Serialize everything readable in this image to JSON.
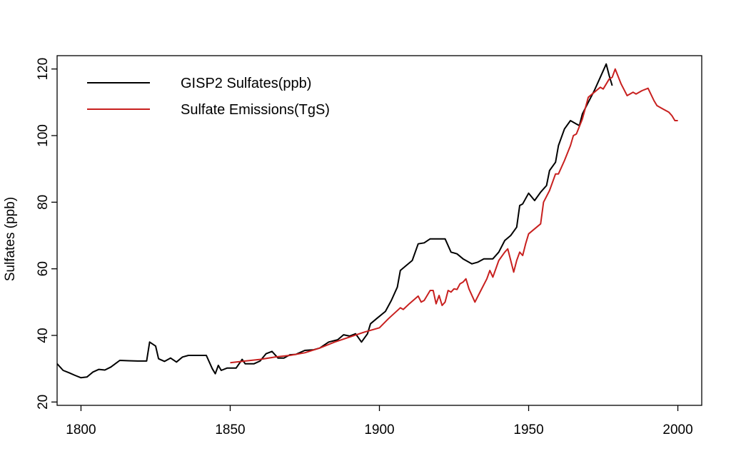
{
  "chart_data": {
    "type": "line",
    "title": "",
    "xlabel": "",
    "ylabel": "Sulfates (ppb)",
    "xlim": [
      1792,
      2008
    ],
    "ylim": [
      19,
      124
    ],
    "x_ticks": [
      1800,
      1850,
      1900,
      1950,
      2000
    ],
    "y_ticks": [
      20,
      40,
      60,
      80,
      100,
      120
    ],
    "grid": false,
    "legend_position": "top-left",
    "series": [
      {
        "name": "GISP2 Sulfates(ppb)",
        "color": "#000000",
        "points": [
          [
            1792,
            31.5
          ],
          [
            1794,
            29.5
          ],
          [
            1796,
            28.8
          ],
          [
            1798,
            28.0
          ],
          [
            1800,
            27.3
          ],
          [
            1802,
            27.5
          ],
          [
            1804,
            29.0
          ],
          [
            1806,
            29.8
          ],
          [
            1808,
            29.6
          ],
          [
            1810,
            30.5
          ],
          [
            1813,
            32.5
          ],
          [
            1816,
            32.4
          ],
          [
            1819,
            32.3
          ],
          [
            1822,
            32.3
          ],
          [
            1823,
            38.0
          ],
          [
            1825,
            36.8
          ],
          [
            1826,
            33.0
          ],
          [
            1828,
            32.2
          ],
          [
            1830,
            33.2
          ],
          [
            1832,
            32.0
          ],
          [
            1834,
            33.5
          ],
          [
            1836,
            34.0
          ],
          [
            1838,
            34.0
          ],
          [
            1840,
            34.0
          ],
          [
            1842,
            34.0
          ],
          [
            1844,
            30.0
          ],
          [
            1845,
            28.5
          ],
          [
            1846,
            31.0
          ],
          [
            1847,
            29.5
          ],
          [
            1849,
            30.2
          ],
          [
            1852,
            30.2
          ],
          [
            1854,
            32.8
          ],
          [
            1855,
            31.5
          ],
          [
            1858,
            31.5
          ],
          [
            1860,
            32.3
          ],
          [
            1862,
            34.5
          ],
          [
            1864,
            35.2
          ],
          [
            1866,
            33.2
          ],
          [
            1868,
            33.2
          ],
          [
            1870,
            34.2
          ],
          [
            1872,
            34.3
          ],
          [
            1875,
            35.5
          ],
          [
            1878,
            35.7
          ],
          [
            1880,
            36.2
          ],
          [
            1883,
            38.0
          ],
          [
            1886,
            38.7
          ],
          [
            1888,
            40.2
          ],
          [
            1890,
            39.8
          ],
          [
            1892,
            40.5
          ],
          [
            1894,
            38.0
          ],
          [
            1896,
            40.5
          ],
          [
            1897,
            43.5
          ],
          [
            1899,
            45.0
          ],
          [
            1902,
            47.2
          ],
          [
            1904,
            50.5
          ],
          [
            1906,
            54.5
          ],
          [
            1907,
            59.5
          ],
          [
            1909,
            61.0
          ],
          [
            1911,
            62.5
          ],
          [
            1913,
            67.5
          ],
          [
            1915,
            67.8
          ],
          [
            1917,
            69.0
          ],
          [
            1919,
            69.0
          ],
          [
            1922,
            69.0
          ],
          [
            1924,
            65.0
          ],
          [
            1926,
            64.5
          ],
          [
            1928,
            63.0
          ],
          [
            1931,
            61.5
          ],
          [
            1933,
            62.0
          ],
          [
            1935,
            63.0
          ],
          [
            1938,
            63.0
          ],
          [
            1940,
            65.0
          ],
          [
            1942,
            68.5
          ],
          [
            1944,
            70.0
          ],
          [
            1946,
            72.5
          ],
          [
            1947,
            79.0
          ],
          [
            1948,
            79.5
          ],
          [
            1950,
            82.7
          ],
          [
            1952,
            80.5
          ],
          [
            1954,
            83.0
          ],
          [
            1956,
            85.0
          ],
          [
            1957,
            89.5
          ],
          [
            1959,
            92.0
          ],
          [
            1960,
            97.0
          ],
          [
            1962,
            102.0
          ],
          [
            1964,
            104.5
          ],
          [
            1966,
            103.5
          ],
          [
            1967,
            103.0
          ],
          [
            1968,
            106.5
          ],
          [
            1970,
            110.0
          ],
          [
            1972,
            113.5
          ],
          [
            1974,
            117.5
          ],
          [
            1976,
            121.5
          ],
          [
            1977,
            118.0
          ],
          [
            1978,
            115.0
          ]
        ]
      },
      {
        "name": "Sulfate Emissions(TgS)",
        "color": "#c8201f",
        "points": [
          [
            1850,
            31.8
          ],
          [
            1855,
            32.3
          ],
          [
            1860,
            32.8
          ],
          [
            1865,
            33.5
          ],
          [
            1870,
            34.0
          ],
          [
            1875,
            34.8
          ],
          [
            1880,
            36.2
          ],
          [
            1885,
            38.0
          ],
          [
            1890,
            39.5
          ],
          [
            1895,
            41.0
          ],
          [
            1900,
            42.3
          ],
          [
            1903,
            45.0
          ],
          [
            1907,
            48.3
          ],
          [
            1908,
            47.8
          ],
          [
            1910,
            49.5
          ],
          [
            1913,
            51.8
          ],
          [
            1914,
            50.0
          ],
          [
            1915,
            50.5
          ],
          [
            1917,
            53.5
          ],
          [
            1918,
            53.5
          ],
          [
            1919,
            49.5
          ],
          [
            1920,
            52.0
          ],
          [
            1921,
            49.0
          ],
          [
            1922,
            50.0
          ],
          [
            1923,
            53.5
          ],
          [
            1924,
            53.0
          ],
          [
            1925,
            54.0
          ],
          [
            1926,
            53.8
          ],
          [
            1927,
            55.5
          ],
          [
            1928,
            56.0
          ],
          [
            1929,
            57.0
          ],
          [
            1930,
            54.0
          ],
          [
            1932,
            50.0
          ],
          [
            1934,
            53.5
          ],
          [
            1936,
            57.0
          ],
          [
            1937,
            59.5
          ],
          [
            1938,
            57.5
          ],
          [
            1940,
            62.5
          ],
          [
            1942,
            65.0
          ],
          [
            1943,
            66.0
          ],
          [
            1945,
            59.0
          ],
          [
            1946,
            62.5
          ],
          [
            1947,
            65.0
          ],
          [
            1948,
            64.0
          ],
          [
            1949,
            67.5
          ],
          [
            1950,
            70.5
          ],
          [
            1952,
            72.0
          ],
          [
            1954,
            73.5
          ],
          [
            1955,
            80.0
          ],
          [
            1957,
            83.5
          ],
          [
            1959,
            88.5
          ],
          [
            1960,
            88.5
          ],
          [
            1962,
            92.5
          ],
          [
            1964,
            97.0
          ],
          [
            1965,
            100.0
          ],
          [
            1966,
            100.5
          ],
          [
            1968,
            105.0
          ],
          [
            1970,
            111.5
          ],
          [
            1972,
            113.0
          ],
          [
            1974,
            114.5
          ],
          [
            1975,
            114.0
          ],
          [
            1977,
            117.0
          ],
          [
            1978,
            117.5
          ],
          [
            1979,
            120.0
          ],
          [
            1981,
            115.5
          ],
          [
            1983,
            112.0
          ],
          [
            1985,
            113.0
          ],
          [
            1986,
            112.5
          ],
          [
            1988,
            113.5
          ],
          [
            1990,
            114.2
          ],
          [
            1992,
            110.5
          ],
          [
            1993,
            109.0
          ],
          [
            1995,
            108.0
          ],
          [
            1997,
            107.0
          ],
          [
            1998,
            106.0
          ],
          [
            1999,
            104.5
          ],
          [
            2000,
            104.5
          ]
        ]
      }
    ]
  }
}
